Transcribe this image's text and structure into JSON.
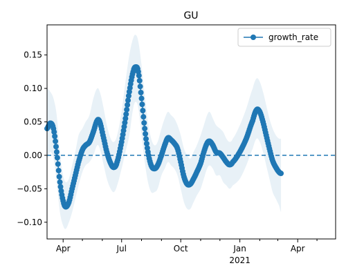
{
  "chart_data": {
    "type": "line",
    "title": "GU",
    "xlabel": "",
    "ylabel": "",
    "x_start": "2020-03-07",
    "x_end": "2021-05-30",
    "ylim": [
      -0.125,
      0.195
    ],
    "yticks": [
      -0.1,
      -0.05,
      0.0,
      0.05,
      0.1,
      0.15
    ],
    "ytick_labels": [
      "−0.10",
      "−0.05",
      "0.00",
      "0.05",
      "0.10",
      "0.15"
    ],
    "xticks_major": [
      {
        "date": "2020-04-01",
        "label": "Apr",
        "sublabel": ""
      },
      {
        "date": "2020-07-01",
        "label": "Jul",
        "sublabel": ""
      },
      {
        "date": "2020-10-01",
        "label": "Oct",
        "sublabel": ""
      },
      {
        "date": "2021-01-01",
        "label": "Jan",
        "sublabel": "2021"
      },
      {
        "date": "2021-04-01",
        "label": "Apr",
        "sublabel": ""
      }
    ],
    "xticks_minor": [
      "2020-05-01",
      "2020-06-01",
      "2020-08-01",
      "2020-09-01",
      "2020-11-01",
      "2020-12-01",
      "2021-02-01",
      "2021-03-01",
      "2021-05-01"
    ],
    "reference_line": {
      "y": 0,
      "style": "dashed",
      "color": "#1f77b4"
    },
    "legend": {
      "position": "top-right",
      "entries": [
        "growth_rate"
      ]
    },
    "grid": false,
    "series": [
      {
        "name": "growth_rate",
        "color": "#1f77b4",
        "band_color": "#1f77b4",
        "band_opacity": 0.1,
        "points": [
          {
            "x": "2020-03-07",
            "y": 0.04,
            "lo": -0.005,
            "hi": 0.1
          },
          {
            "x": "2020-03-12",
            "y": 0.048,
            "lo": 0.005,
            "hi": 0.095
          },
          {
            "x": "2020-03-17",
            "y": 0.04,
            "lo": -0.005,
            "hi": 0.085
          },
          {
            "x": "2020-03-22",
            "y": 0.005,
            "lo": -0.04,
            "hi": 0.06
          },
          {
            "x": "2020-03-27",
            "y": -0.04,
            "lo": -0.085,
            "hi": 0.005
          },
          {
            "x": "2020-04-01",
            "y": -0.068,
            "lo": -0.105,
            "hi": -0.03
          },
          {
            "x": "2020-04-05",
            "y": -0.077,
            "lo": -0.11,
            "hi": -0.04
          },
          {
            "x": "2020-04-10",
            "y": -0.07,
            "lo": -0.1,
            "hi": -0.035
          },
          {
            "x": "2020-04-15",
            "y": -0.05,
            "lo": -0.085,
            "hi": -0.015
          },
          {
            "x": "2020-04-20",
            "y": -0.03,
            "lo": -0.065,
            "hi": 0.005
          },
          {
            "x": "2020-04-25",
            "y": -0.01,
            "lo": -0.045,
            "hi": 0.03
          },
          {
            "x": "2020-05-01",
            "y": 0.008,
            "lo": -0.025,
            "hi": 0.04
          },
          {
            "x": "2020-05-06",
            "y": 0.015,
            "lo": -0.015,
            "hi": 0.05
          },
          {
            "x": "2020-05-12",
            "y": 0.02,
            "lo": -0.01,
            "hi": 0.06
          },
          {
            "x": "2020-05-18",
            "y": 0.035,
            "lo": 0.0,
            "hi": 0.085
          },
          {
            "x": "2020-05-24",
            "y": 0.052,
            "lo": 0.015,
            "hi": 0.1
          },
          {
            "x": "2020-05-28",
            "y": 0.05,
            "lo": 0.01,
            "hi": 0.095
          },
          {
            "x": "2020-06-02",
            "y": 0.03,
            "lo": -0.01,
            "hi": 0.075
          },
          {
            "x": "2020-06-08",
            "y": 0.005,
            "lo": -0.035,
            "hi": 0.045
          },
          {
            "x": "2020-06-14",
            "y": -0.012,
            "lo": -0.05,
            "hi": 0.025
          },
          {
            "x": "2020-06-19",
            "y": -0.018,
            "lo": -0.055,
            "hi": 0.02
          },
          {
            "x": "2020-06-24",
            "y": -0.01,
            "lo": -0.045,
            "hi": 0.03
          },
          {
            "x": "2020-07-01",
            "y": 0.02,
            "lo": -0.02,
            "hi": 0.065
          },
          {
            "x": "2020-07-07",
            "y": 0.055,
            "lo": 0.005,
            "hi": 0.11
          },
          {
            "x": "2020-07-13",
            "y": 0.095,
            "lo": 0.03,
            "hi": 0.15
          },
          {
            "x": "2020-07-19",
            "y": 0.125,
            "lo": 0.07,
            "hi": 0.175
          },
          {
            "x": "2020-07-23",
            "y": 0.132,
            "lo": 0.08,
            "hi": 0.18
          },
          {
            "x": "2020-07-27",
            "y": 0.125,
            "lo": 0.07,
            "hi": 0.17
          },
          {
            "x": "2020-08-01",
            "y": 0.085,
            "lo": 0.03,
            "hi": 0.135
          },
          {
            "x": "2020-08-06",
            "y": 0.04,
            "lo": -0.01,
            "hi": 0.09
          },
          {
            "x": "2020-08-11",
            "y": 0.005,
            "lo": -0.04,
            "hi": 0.05
          },
          {
            "x": "2020-08-16",
            "y": -0.015,
            "lo": -0.055,
            "hi": 0.025
          },
          {
            "x": "2020-08-21",
            "y": -0.02,
            "lo": -0.055,
            "hi": 0.015
          },
          {
            "x": "2020-08-26",
            "y": -0.015,
            "lo": -0.05,
            "hi": 0.02
          },
          {
            "x": "2020-09-01",
            "y": 0.0,
            "lo": -0.03,
            "hi": 0.04
          },
          {
            "x": "2020-09-06",
            "y": 0.015,
            "lo": -0.02,
            "hi": 0.055
          },
          {
            "x": "2020-09-11",
            "y": 0.026,
            "lo": -0.01,
            "hi": 0.065
          },
          {
            "x": "2020-09-16",
            "y": 0.023,
            "lo": -0.015,
            "hi": 0.06
          },
          {
            "x": "2020-09-21",
            "y": 0.018,
            "lo": -0.02,
            "hi": 0.055
          },
          {
            "x": "2020-09-26",
            "y": 0.01,
            "lo": -0.03,
            "hi": 0.045
          },
          {
            "x": "2020-10-01",
            "y": -0.01,
            "lo": -0.05,
            "hi": 0.03
          },
          {
            "x": "2020-10-06",
            "y": -0.032,
            "lo": -0.07,
            "hi": 0.01
          },
          {
            "x": "2020-10-11",
            "y": -0.043,
            "lo": -0.08,
            "hi": 0.0
          },
          {
            "x": "2020-10-16",
            "y": -0.043,
            "lo": -0.08,
            "hi": -0.005
          },
          {
            "x": "2020-10-21",
            "y": -0.035,
            "lo": -0.07,
            "hi": 0.005
          },
          {
            "x": "2020-10-26",
            "y": -0.025,
            "lo": -0.06,
            "hi": 0.015
          },
          {
            "x": "2020-11-01",
            "y": -0.012,
            "lo": -0.05,
            "hi": 0.03
          },
          {
            "x": "2020-11-06",
            "y": 0.005,
            "lo": -0.035,
            "hi": 0.045
          },
          {
            "x": "2020-11-11",
            "y": 0.018,
            "lo": -0.02,
            "hi": 0.06
          },
          {
            "x": "2020-11-15",
            "y": 0.021,
            "lo": -0.015,
            "hi": 0.065
          },
          {
            "x": "2020-11-20",
            "y": 0.015,
            "lo": -0.02,
            "hi": 0.055
          },
          {
            "x": "2020-11-25",
            "y": 0.005,
            "lo": -0.03,
            "hi": 0.045
          },
          {
            "x": "2020-12-01",
            "y": 0.003,
            "lo": -0.03,
            "hi": 0.04
          },
          {
            "x": "2020-12-06",
            "y": -0.003,
            "lo": -0.04,
            "hi": 0.035
          },
          {
            "x": "2020-12-11",
            "y": -0.01,
            "lo": -0.045,
            "hi": 0.025
          },
          {
            "x": "2020-12-16",
            "y": -0.014,
            "lo": -0.05,
            "hi": 0.02
          },
          {
            "x": "2020-12-21",
            "y": -0.01,
            "lo": -0.045,
            "hi": 0.025
          },
          {
            "x": "2021-01-01",
            "y": 0.005,
            "lo": -0.035,
            "hi": 0.045
          },
          {
            "x": "2021-01-11",
            "y": 0.025,
            "lo": -0.015,
            "hi": 0.07
          },
          {
            "x": "2021-01-21",
            "y": 0.052,
            "lo": 0.01,
            "hi": 0.1
          },
          {
            "x": "2021-01-27",
            "y": 0.068,
            "lo": 0.025,
            "hi": 0.115
          },
          {
            "x": "2021-02-01",
            "y": 0.065,
            "lo": 0.02,
            "hi": 0.11
          },
          {
            "x": "2021-02-06",
            "y": 0.05,
            "lo": 0.005,
            "hi": 0.095
          },
          {
            "x": "2021-02-11",
            "y": 0.03,
            "lo": -0.015,
            "hi": 0.075
          },
          {
            "x": "2021-02-16",
            "y": 0.01,
            "lo": -0.035,
            "hi": 0.055
          },
          {
            "x": "2021-02-21",
            "y": -0.008,
            "lo": -0.055,
            "hi": 0.04
          },
          {
            "x": "2021-02-26",
            "y": -0.018,
            "lo": -0.065,
            "hi": 0.03
          },
          {
            "x": "2021-03-03",
            "y": -0.025,
            "lo": -0.075,
            "hi": 0.025
          },
          {
            "x": "2021-03-06",
            "y": -0.027,
            "lo": -0.085,
            "hi": 0.025
          }
        ]
      }
    ]
  }
}
